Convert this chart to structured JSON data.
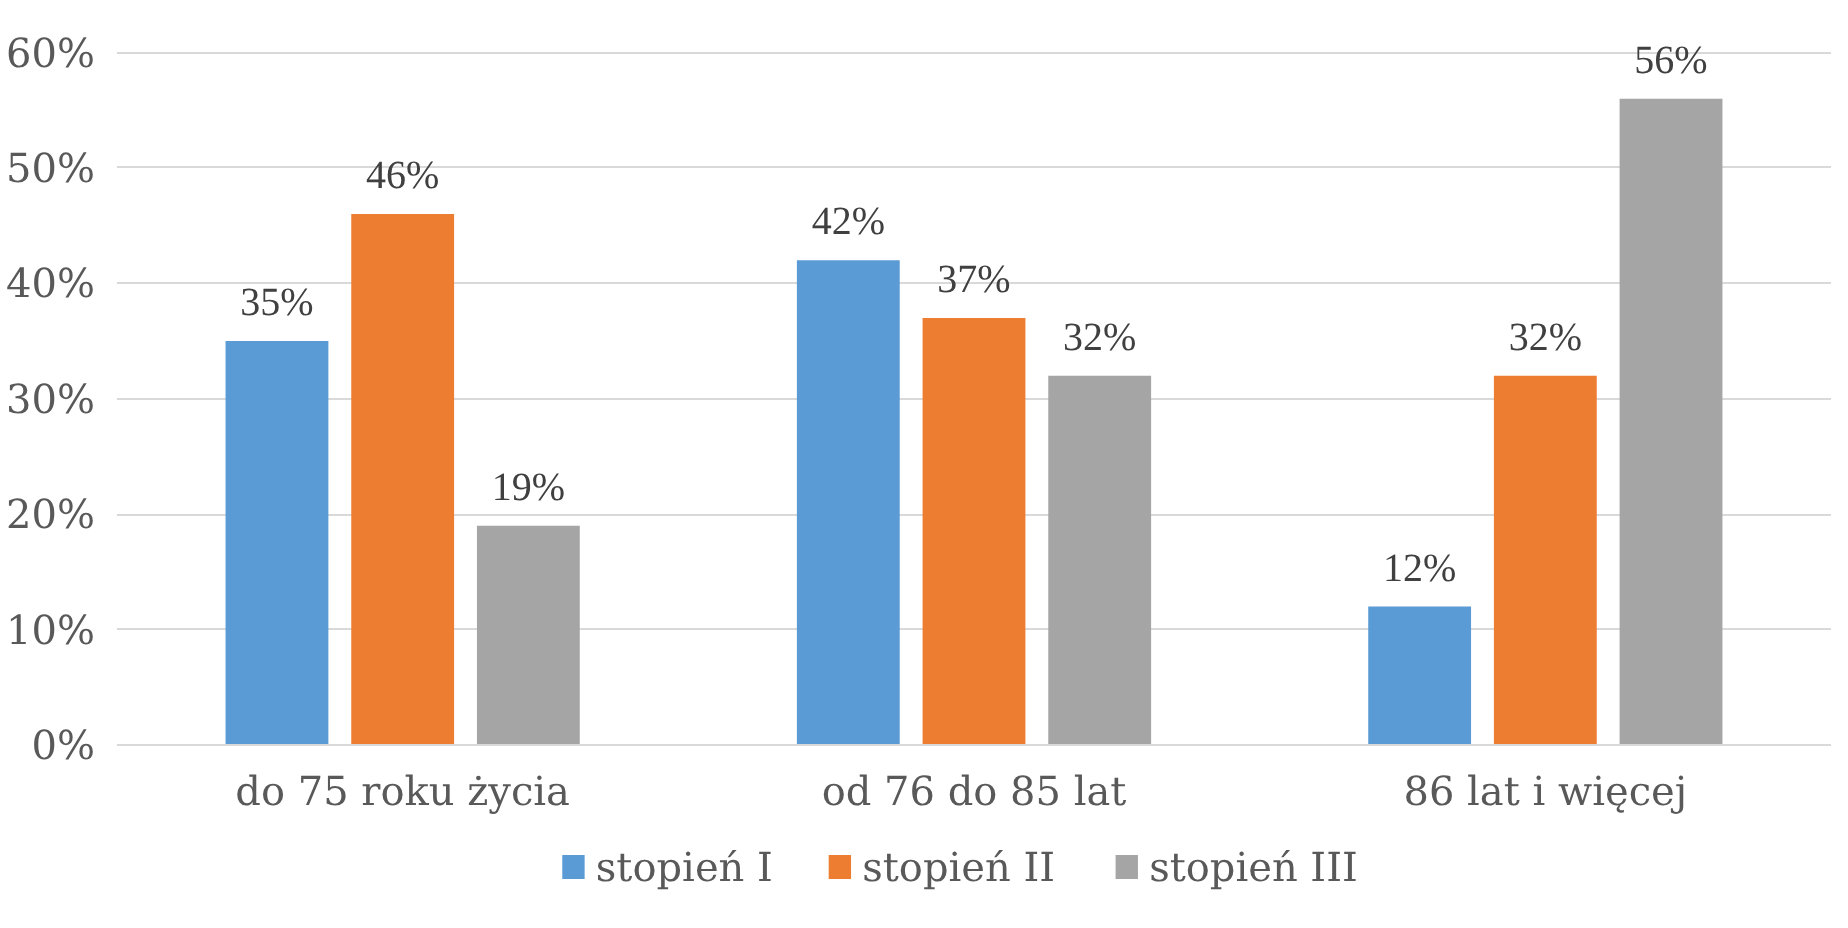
{
  "chart_data": {
    "type": "bar",
    "categories": [
      "do 75 roku życia",
      "od 76 do 85 lat",
      "86 lat i więcej"
    ],
    "series": [
      {
        "name": "stopień I",
        "color": "#5b9bd5",
        "values": [
          35,
          42,
          12
        ],
        "value_labels": [
          "35%",
          "42%",
          "12%"
        ]
      },
      {
        "name": "stopień II",
        "color": "#ed7d31",
        "values": [
          46,
          37,
          32
        ],
        "value_labels": [
          "46%",
          "37%",
          "32%"
        ]
      },
      {
        "name": "stopień III",
        "color": "#a5a5a5",
        "values": [
          19,
          32,
          56
        ],
        "value_labels": [
          "19%",
          "32%",
          "56%"
        ]
      }
    ],
    "ylim": [
      0,
      60
    ],
    "yticks": [
      {
        "value": 0,
        "label": "0%"
      },
      {
        "value": 10,
        "label": "10%"
      },
      {
        "value": 20,
        "label": "20%"
      },
      {
        "value": 30,
        "label": "30%"
      },
      {
        "value": 40,
        "label": "40%"
      },
      {
        "value": 50,
        "label": "50%"
      },
      {
        "value": 60,
        "label": "60%"
      }
    ],
    "grid": "y",
    "legend": "bottom"
  }
}
